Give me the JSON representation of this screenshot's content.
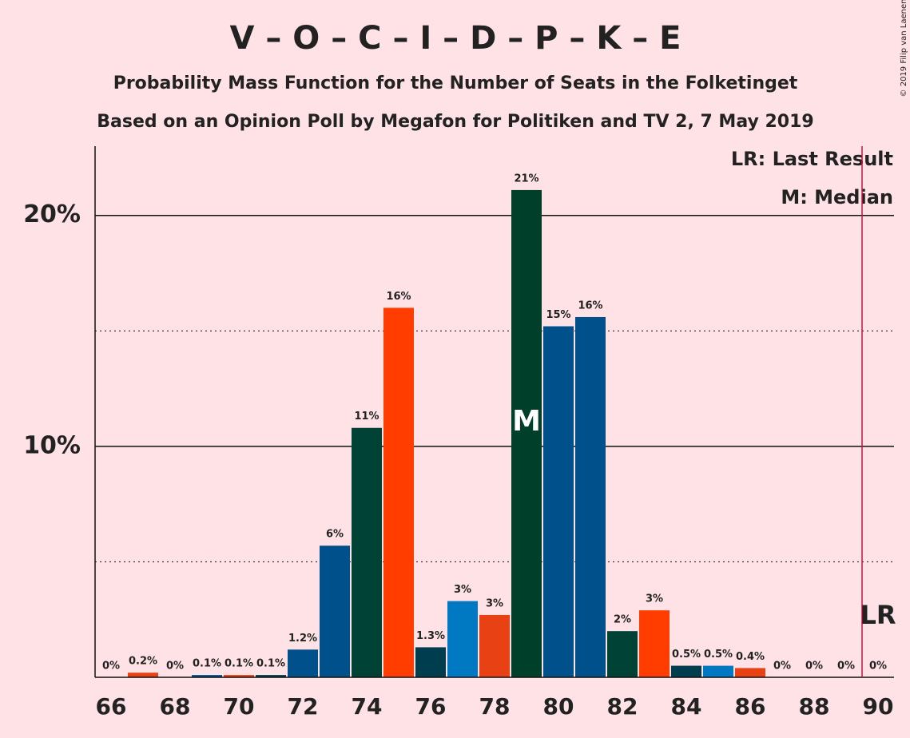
{
  "chart_data": {
    "type": "bar",
    "title": "V – O – C – I – D – P – K – E",
    "subtitle": "Probability Mass Function for the Number of Seats in the Folketinget",
    "subtitle2": "Based on an Opinion Poll by Megafon for Politiken and TV 2, 7 May 2019",
    "copyright": "© 2019 Filip van Laenen",
    "x": [
      66,
      67,
      68,
      69,
      70,
      71,
      72,
      73,
      74,
      75,
      76,
      77,
      78,
      79,
      80,
      81,
      82,
      83,
      84,
      85,
      86,
      87,
      88,
      89,
      90
    ],
    "values": [
      0,
      0.2,
      0,
      0.1,
      0.1,
      0.1,
      1.2,
      5.7,
      10.8,
      16.0,
      1.3,
      3.3,
      2.7,
      21.1,
      15.2,
      15.6,
      2.0,
      2.9,
      0.5,
      0.5,
      0.4,
      0,
      0,
      0,
      0
    ],
    "value_labels": [
      "0%",
      "0.2%",
      "0%",
      "0.1%",
      "0.1%",
      "0.1%",
      "1.2%",
      "6%",
      "11%",
      "16%",
      "1.3%",
      "3%",
      "3%",
      "21%",
      "15%",
      "16%",
      "2%",
      "3%",
      "0.5%",
      "0.5%",
      "0.4%",
      "0%",
      "0%",
      "0%",
      "0%"
    ],
    "colors": [
      "#00508c",
      "#e84214",
      "#004236",
      "#00508c",
      "#e84214",
      "#003d4f",
      "#00508c",
      "#00508c",
      "#004236",
      "#ff3d00",
      "#003d4f",
      "#0079c2",
      "#e84214",
      "#00402b",
      "#00508c",
      "#00508c",
      "#004236",
      "#ff3d00",
      "#003d4f",
      "#0079c2",
      "#e84214",
      "#004236",
      "#00508c",
      "#00508c",
      "#004236"
    ],
    "xlim": [
      65.5,
      90.5
    ],
    "xticks": [
      66,
      68,
      70,
      72,
      74,
      76,
      78,
      80,
      82,
      84,
      86,
      88,
      90
    ],
    "ylim": [
      0,
      23
    ],
    "yticks": [
      {
        "value": 10,
        "label": "10%"
      },
      {
        "value": 20,
        "label": "20%"
      }
    ],
    "minor_gridlines": [
      5,
      15
    ],
    "median": 79,
    "median_label": "M",
    "last_result": 90,
    "last_result_label": "LR",
    "legend": [
      "LR: Last Result",
      "M: Median"
    ]
  }
}
